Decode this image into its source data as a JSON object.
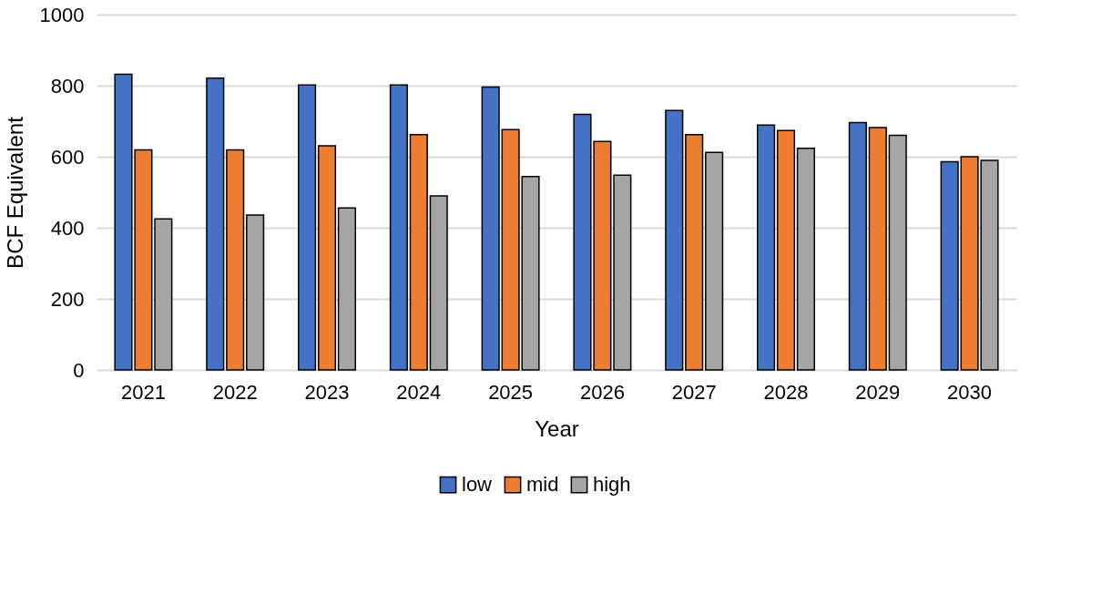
{
  "chart_data": {
    "type": "bar",
    "xlabel": "Year",
    "ylabel": "BCF Equivalent",
    "categories": [
      "2021",
      "2022",
      "2023",
      "2024",
      "2025",
      "2026",
      "2027",
      "2028",
      "2029",
      "2030"
    ],
    "series": [
      {
        "name": "low",
        "color": "#4472c4",
        "values": [
          832,
          821,
          802,
          802,
          796,
          719,
          730,
          689,
          696,
          586
        ]
      },
      {
        "name": "mid",
        "color": "#ed7d31",
        "values": [
          619,
          619,
          631,
          662,
          676,
          643,
          662,
          674,
          682,
          600
        ]
      },
      {
        "name": "high",
        "color": "#a5a5a5",
        "values": [
          425,
          436,
          456,
          490,
          544,
          548,
          612,
          624,
          660,
          590
        ]
      }
    ],
    "ylim": [
      0,
      1000
    ],
    "yticks": [
      0,
      200,
      400,
      600,
      800,
      1000
    ],
    "grid": "y",
    "legend": "bottom"
  }
}
